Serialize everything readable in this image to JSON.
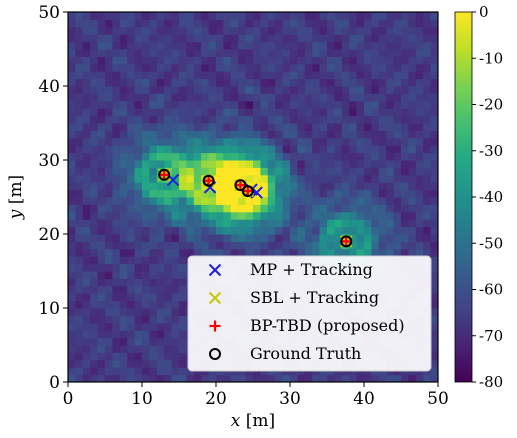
{
  "chart_data": {
    "type": "heatmap",
    "title": "",
    "xlabel": "x [m]",
    "ylabel": "y [m]",
    "xlabel_var": "x",
    "xlabel_unit": " [m]",
    "ylabel_var": "y",
    "ylabel_unit": " [m]",
    "xlim": [
      0,
      50
    ],
    "ylim": [
      0,
      50
    ],
    "x_ticks": [
      0,
      10,
      20,
      30,
      40,
      50
    ],
    "y_ticks": [
      0,
      10,
      20,
      30,
      40,
      50
    ],
    "x_tick_labels": [
      "0",
      "10",
      "20",
      "30",
      "40",
      "50"
    ],
    "y_tick_labels": [
      "0",
      "10",
      "20",
      "30",
      "40",
      "50"
    ],
    "colormap": "viridis",
    "colorbar": {
      "range": [
        -80,
        0
      ],
      "ticks": [
        0,
        -10,
        -20,
        -30,
        -40,
        -50,
        -60,
        -70,
        -80
      ],
      "tick_labels": [
        "0",
        "-10",
        "-20",
        "-30",
        "-40",
        "-50",
        "-60",
        "-70",
        "-80"
      ]
    },
    "grid": false,
    "legend_position": "bottom-right",
    "series": [
      {
        "name": "MP + Tracking",
        "marker": "x",
        "color": "#1f1fe0",
        "points": [
          [
            14.2,
            27.3
          ],
          [
            19.2,
            26.3
          ],
          [
            24.8,
            26.0
          ],
          [
            25.5,
            25.6
          ]
        ]
      },
      {
        "name": "SBL + Tracking",
        "marker": "x",
        "color": "#c8c800",
        "points": [
          [
            13.0,
            28.0
          ],
          [
            19.0,
            27.2
          ],
          [
            23.3,
            26.6
          ],
          [
            24.3,
            25.8
          ],
          [
            37.6,
            19.0
          ]
        ]
      },
      {
        "name": "BP-TBD (proposed)",
        "marker": "plus",
        "color": "#ff0000",
        "points": [
          [
            13.0,
            28.0
          ],
          [
            19.0,
            27.2
          ],
          [
            23.3,
            26.6
          ],
          [
            24.3,
            25.8
          ],
          [
            37.6,
            19.0
          ]
        ]
      },
      {
        "name": "Ground Truth",
        "marker": "circle",
        "color": "#000000",
        "points": [
          [
            13.0,
            28.0
          ],
          [
            19.0,
            27.2
          ],
          [
            23.3,
            26.6
          ],
          [
            24.3,
            25.8
          ],
          [
            37.6,
            19.0
          ]
        ]
      }
    ]
  }
}
